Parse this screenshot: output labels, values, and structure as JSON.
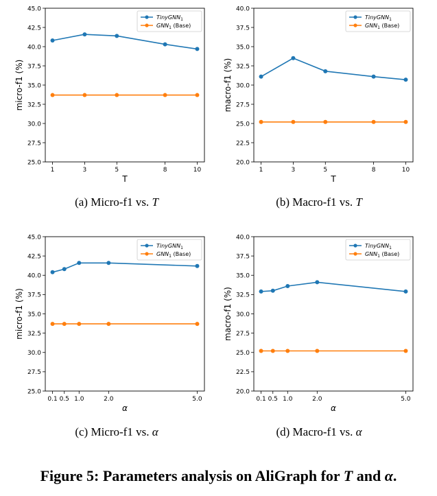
{
  "figure": {
    "prefix": "Figure 5: Parameters analysis on AliGraph for ",
    "var1": "T",
    "middle": " and ",
    "var2": "α",
    "suffix": "."
  },
  "subcaptions": [
    {
      "label": "(a)",
      "text": "Micro-f1 vs. ",
      "var": "T"
    },
    {
      "label": "(b)",
      "text": "Macro-f1 vs. ",
      "var": "T"
    },
    {
      "label": "(c)",
      "text": "Micro-f1 vs. ",
      "var": "α"
    },
    {
      "label": "(d)",
      "text": "Macro-f1 vs. ",
      "var": "α"
    }
  ],
  "legend": {
    "tiny": {
      "base": "TinyGNN",
      "sub": "1",
      "extra": ""
    },
    "gnn": {
      "base": "GNN",
      "sub": "1",
      "extra": " (Base)"
    }
  },
  "colors": {
    "tinygnn": "#1f77b4",
    "gnn_base": "#ff7f0e",
    "axes": "#000000"
  },
  "chart_data": [
    {
      "type": "line",
      "xlabel": "T",
      "ylabel": "micro-f1 (%)",
      "x": [
        1,
        3,
        5,
        8,
        10
      ],
      "x_ticks": [
        "1",
        "3",
        "5",
        "8",
        "10"
      ],
      "xlim": [
        0.55,
        10.45
      ],
      "ylim": [
        25.0,
        45.0
      ],
      "y_ticks": [
        "25.0",
        "27.5",
        "30.0",
        "32.5",
        "35.0",
        "37.5",
        "40.0",
        "42.5",
        "45.0"
      ],
      "legend_position": "top-right",
      "grid": false,
      "series": [
        {
          "name": "TinyGNN1",
          "color": "#1f77b4",
          "values": [
            40.8,
            41.6,
            41.4,
            40.3,
            39.7
          ]
        },
        {
          "name": "GNN1 (Base)",
          "color": "#ff7f0e",
          "values": [
            33.7,
            33.7,
            33.7,
            33.7,
            33.7
          ]
        }
      ]
    },
    {
      "type": "line",
      "xlabel": "T",
      "ylabel": "macro-f1 (%)",
      "x": [
        1,
        3,
        5,
        8,
        10
      ],
      "x_ticks": [
        "1",
        "3",
        "5",
        "8",
        "10"
      ],
      "xlim": [
        0.55,
        10.45
      ],
      "ylim": [
        20.0,
        40.0
      ],
      "y_ticks": [
        "20.0",
        "22.5",
        "25.0",
        "27.5",
        "30.0",
        "32.5",
        "35.0",
        "37.5",
        "40.0"
      ],
      "legend_position": "top-right",
      "grid": false,
      "series": [
        {
          "name": "TinyGNN1",
          "color": "#1f77b4",
          "values": [
            31.1,
            33.5,
            31.8,
            31.1,
            30.7
          ]
        },
        {
          "name": "GNN1 (Base)",
          "color": "#ff7f0e",
          "values": [
            25.2,
            25.2,
            25.2,
            25.2,
            25.2
          ]
        }
      ]
    },
    {
      "type": "line",
      "xlabel": "α",
      "ylabel": "micro-f1 (%)",
      "x": [
        0.1,
        0.5,
        1.0,
        2.0,
        5.0
      ],
      "x_ticks": [
        "0.1",
        "0.5",
        "1.0",
        "2.0",
        "5.0"
      ],
      "xlim": [
        -0.145,
        5.245
      ],
      "ylim": [
        25.0,
        45.0
      ],
      "y_ticks": [
        "25.0",
        "27.5",
        "30.0",
        "32.5",
        "35.0",
        "37.5",
        "40.0",
        "42.5",
        "45.0"
      ],
      "legend_position": "top-right",
      "grid": false,
      "series": [
        {
          "name": "TinyGNN1",
          "color": "#1f77b4",
          "values": [
            40.4,
            40.8,
            41.6,
            41.6,
            41.2
          ]
        },
        {
          "name": "GNN1 (Base)",
          "color": "#ff7f0e",
          "values": [
            33.7,
            33.7,
            33.7,
            33.7,
            33.7
          ]
        }
      ]
    },
    {
      "type": "line",
      "xlabel": "α",
      "ylabel": "macro-f1 (%)",
      "x": [
        0.1,
        0.5,
        1.0,
        2.0,
        5.0
      ],
      "x_ticks": [
        "0.1",
        "0.5",
        "1.0",
        "2.0",
        "5.0"
      ],
      "xlim": [
        -0.145,
        5.245
      ],
      "ylim": [
        20.0,
        40.0
      ],
      "y_ticks": [
        "20.0",
        "22.5",
        "25.0",
        "27.5",
        "30.0",
        "32.5",
        "35.0",
        "37.5",
        "40.0"
      ],
      "legend_position": "top-right",
      "grid": false,
      "series": [
        {
          "name": "TinyGNN1",
          "color": "#1f77b4",
          "values": [
            32.9,
            33.0,
            33.6,
            34.1,
            32.9
          ]
        },
        {
          "name": "GNN1 (Base)",
          "color": "#ff7f0e",
          "values": [
            25.2,
            25.2,
            25.2,
            25.2,
            25.2
          ]
        }
      ]
    }
  ]
}
